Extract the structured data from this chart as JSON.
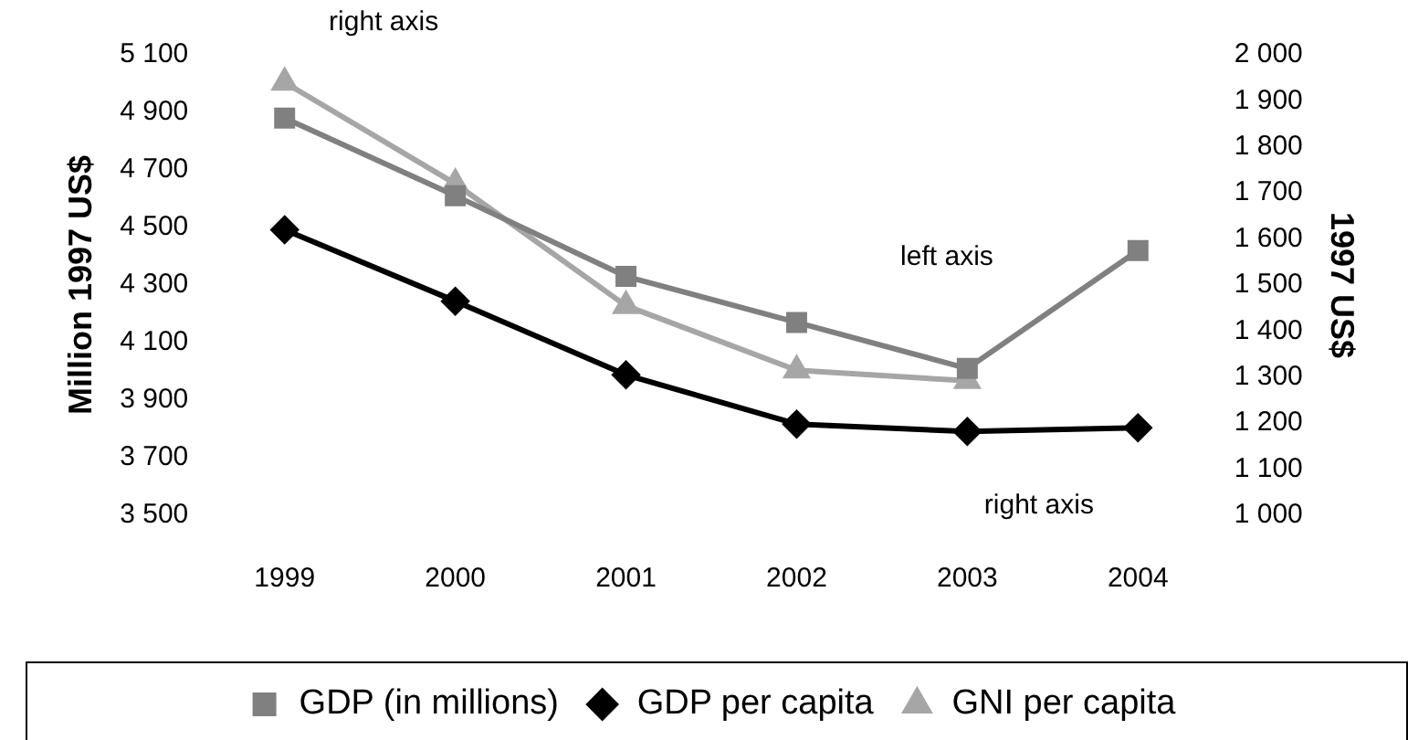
{
  "chart_data": {
    "type": "line",
    "ylabel": "Million 1997 US$",
    "y2label": "1997 US$",
    "categories": [
      "1999",
      "2000",
      "2001",
      "2002",
      "2003",
      "2004"
    ],
    "series": [
      {
        "name": "GDP (in millions)",
        "color": "#808080",
        "marker": "square",
        "values": [
          4880,
          4610,
          4330,
          4170,
          4010,
          4420
        ]
      },
      {
        "name": "GDP per capita",
        "color": "#000000",
        "marker": "diamond",
        "axis": "y2",
        "values": [
          1620,
          1465,
          1305,
          1198,
          1182,
          1190
        ]
      },
      {
        "name": "GNI per capita",
        "color": "#a6a6a6",
        "marker": "triangle",
        "axis": "y2",
        "values": [
          1940,
          1720,
          1455,
          1315,
          1292,
          null
        ]
      }
    ],
    "ylim": [
      3500,
      5100
    ],
    "yticks": [
      {
        "value": 3500,
        "label": "3 500"
      },
      {
        "value": 3700,
        "label": "3 700"
      },
      {
        "value": 3900,
        "label": "3 900"
      },
      {
        "value": 4100,
        "label": "4 100"
      },
      {
        "value": 4300,
        "label": "4 300"
      },
      {
        "value": 4500,
        "label": "4 500"
      },
      {
        "value": 4700,
        "label": "4 700"
      },
      {
        "value": 4900,
        "label": "4 900"
      },
      {
        "value": 5100,
        "label": "5 100"
      }
    ],
    "y2lim": [
      1000,
      2000
    ],
    "y2ticks": [
      {
        "value": 1000,
        "label": "1 000"
      },
      {
        "value": 1100,
        "label": "1 100"
      },
      {
        "value": 1200,
        "label": "1 200"
      },
      {
        "value": 1300,
        "label": "1 300"
      },
      {
        "value": 1400,
        "label": "1 400"
      },
      {
        "value": 1500,
        "label": "1 500"
      },
      {
        "value": 1600,
        "label": "1 600"
      },
      {
        "value": 1700,
        "label": "1 700"
      },
      {
        "value": 1800,
        "label": "1 800"
      },
      {
        "value": 1900,
        "label": "1 900"
      },
      {
        "value": 2000,
        "label": "2 000"
      }
    ],
    "annotations": [
      "right axis",
      "left axis",
      "right axis"
    ],
    "grid": false,
    "legend": "bottom",
    "line_style": "solid"
  }
}
